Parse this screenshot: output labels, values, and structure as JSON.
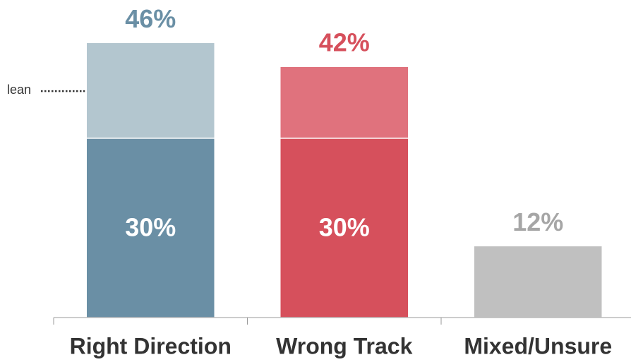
{
  "chart_data": {
    "type": "stacked_bar",
    "categories": [
      "Right Direction",
      "Wrong Track",
      "Mixed/Unsure"
    ],
    "series": [
      {
        "values": [
          30,
          30,
          12
        ],
        "colors": [
          "#6a8fa5",
          "#d6505c",
          "#c0c0c0"
        ],
        "value_labels": [
          "30%",
          "30%",
          null
        ]
      },
      {
        "values": [
          16,
          12,
          null
        ],
        "colors": [
          "#b3c6cf",
          "#e0727d",
          null
        ]
      }
    ],
    "totals": [
      46,
      42,
      12
    ],
    "total_labels": [
      "46%",
      "42%",
      "12%"
    ],
    "total_label_colors": [
      "#6a8fa5",
      "#d6505c",
      "#a6a6a6"
    ],
    "annotations": [
      {
        "text": "lean",
        "series": 1,
        "category": 0
      }
    ],
    "ylim": [
      0,
      53
    ]
  }
}
